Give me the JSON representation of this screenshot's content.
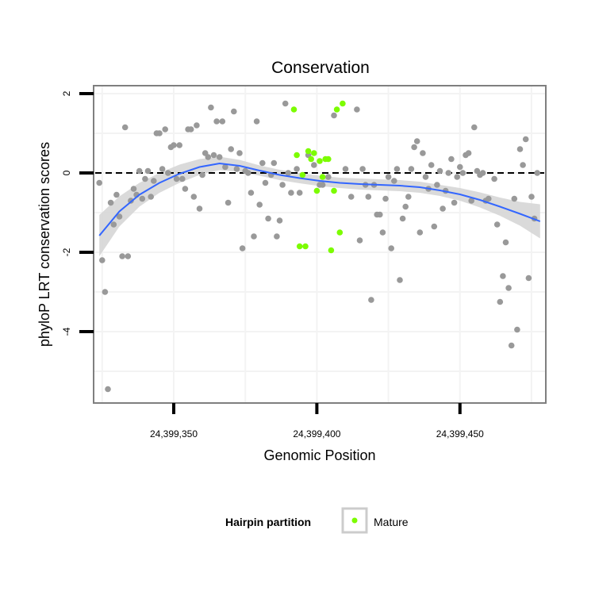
{
  "chart_data": {
    "type": "scatter",
    "title": "Conservation",
    "xlabel": "Genomic Position",
    "ylabel": "phyloP LRT conservation scores",
    "xlim": [
      24399322,
      24399480
    ],
    "ylim": [
      -5.8,
      2.2
    ],
    "x_ticks": [
      24399350,
      24399400,
      24399450
    ],
    "x_tick_labels": [
      "24,399,350",
      "24,399,400",
      "24,399,450"
    ],
    "y_ticks": [
      2,
      0,
      -2,
      -4
    ],
    "y_tick_labels": [
      "2",
      "0",
      "-2",
      "-4"
    ],
    "grid": true,
    "reference_line_y": 0,
    "legend": {
      "title": "Hairpin partition",
      "entries": [
        {
          "label": "Mature",
          "color": "#7cfc00"
        }
      ],
      "placement": "bottom"
    },
    "colors": {
      "other": "#999999",
      "mature": "#7cfc00",
      "smooth": "#3366ff",
      "band": "#d3d3d3"
    },
    "series": [
      {
        "group": "other",
        "points": [
          [
            24399324,
            -0.25
          ],
          [
            24399325,
            -2.2
          ],
          [
            24399326,
            -3.0
          ],
          [
            24399327,
            -5.45
          ],
          [
            24399328,
            -0.75
          ],
          [
            24399329,
            -1.3
          ],
          [
            24399330,
            -0.55
          ],
          [
            24399331,
            -1.1
          ],
          [
            24399332,
            -2.1
          ],
          [
            24399333,
            1.15
          ],
          [
            24399334,
            -2.1
          ],
          [
            24399335,
            -0.7
          ],
          [
            24399336,
            -0.4
          ],
          [
            24399337,
            -0.55
          ],
          [
            24399338,
            0.05
          ],
          [
            24399339,
            -0.65
          ],
          [
            24399340,
            -0.15
          ],
          [
            24399341,
            0.05
          ],
          [
            24399342,
            -0.6
          ],
          [
            24399343,
            -0.2
          ],
          [
            24399344,
            1.0
          ],
          [
            24399345,
            1.0
          ],
          [
            24399346,
            0.1
          ],
          [
            24399347,
            1.1
          ],
          [
            24399348,
            0.0
          ],
          [
            24399349,
            0.65
          ],
          [
            24399350,
            0.7
          ],
          [
            24399351,
            -0.15
          ],
          [
            24399352,
            0.7
          ],
          [
            24399353,
            -0.15
          ],
          [
            24399354,
            -0.4
          ],
          [
            24399355,
            1.1
          ],
          [
            24399356,
            1.1
          ],
          [
            24399357,
            -0.6
          ],
          [
            24399358,
            1.2
          ],
          [
            24399359,
            -0.9
          ],
          [
            24399360,
            -0.05
          ],
          [
            24399361,
            0.5
          ],
          [
            24399362,
            0.4
          ],
          [
            24399363,
            1.65
          ],
          [
            24399364,
            0.45
          ],
          [
            24399365,
            1.3
          ],
          [
            24399366,
            0.4
          ],
          [
            24399367,
            1.3
          ],
          [
            24399368,
            0.15
          ],
          [
            24399369,
            -0.75
          ],
          [
            24399370,
            0.6
          ],
          [
            24399371,
            1.55
          ],
          [
            24399372,
            0.1
          ],
          [
            24399373,
            0.5
          ],
          [
            24399374,
            -1.9
          ],
          [
            24399375,
            0.05
          ],
          [
            24399376,
            0.0
          ],
          [
            24399377,
            -0.5
          ],
          [
            24399378,
            -1.6
          ],
          [
            24399379,
            1.3
          ],
          [
            24399380,
            -0.8
          ],
          [
            24399381,
            0.25
          ],
          [
            24399382,
            -0.25
          ],
          [
            24399383,
            -1.15
          ],
          [
            24399384,
            -0.05
          ],
          [
            24399385,
            0.25
          ],
          [
            24399386,
            -1.6
          ],
          [
            24399387,
            -1.2
          ],
          [
            24399388,
            -0.3
          ],
          [
            24399389,
            1.75
          ],
          [
            24399390,
            0.0
          ],
          [
            24399391,
            -0.5
          ],
          [
            24399393,
            0.1
          ],
          [
            24399394,
            -0.5
          ],
          [
            24399397,
            0.45
          ],
          [
            24399399,
            0.2
          ],
          [
            24399401,
            -0.3
          ],
          [
            24399402,
            -0.3
          ],
          [
            24399404,
            -0.1
          ],
          [
            24399406,
            1.45
          ],
          [
            24399410,
            0.1
          ],
          [
            24399412,
            -0.6
          ],
          [
            24399414,
            1.6
          ],
          [
            24399415,
            -1.7
          ],
          [
            24399416,
            0.1
          ],
          [
            24399417,
            -0.3
          ],
          [
            24399418,
            -0.6
          ],
          [
            24399419,
            -3.2
          ],
          [
            24399420,
            -0.3
          ],
          [
            24399421,
            -1.05
          ],
          [
            24399422,
            -1.05
          ],
          [
            24399423,
            -1.5
          ],
          [
            24399424,
            -0.65
          ],
          [
            24399425,
            -0.1
          ],
          [
            24399426,
            -1.9
          ],
          [
            24399427,
            -0.2
          ],
          [
            24399428,
            0.1
          ],
          [
            24399429,
            -2.7
          ],
          [
            24399430,
            -1.15
          ],
          [
            24399431,
            -0.85
          ],
          [
            24399432,
            -0.6
          ],
          [
            24399433,
            0.1
          ],
          [
            24399434,
            0.65
          ],
          [
            24399435,
            0.8
          ],
          [
            24399436,
            -1.5
          ],
          [
            24399437,
            0.5
          ],
          [
            24399438,
            -0.1
          ],
          [
            24399439,
            -0.4
          ],
          [
            24399440,
            0.2
          ],
          [
            24399441,
            -1.35
          ],
          [
            24399442,
            -0.3
          ],
          [
            24399443,
            0.05
          ],
          [
            24399444,
            -0.9
          ],
          [
            24399445,
            -0.45
          ],
          [
            24399446,
            0.0
          ],
          [
            24399447,
            0.35
          ],
          [
            24399448,
            -0.75
          ],
          [
            24399449,
            -0.1
          ],
          [
            24399450,
            0.15
          ],
          [
            24399451,
            0.0
          ],
          [
            24399452,
            0.45
          ],
          [
            24399453,
            0.5
          ],
          [
            24399454,
            -0.7
          ],
          [
            24399455,
            1.15
          ],
          [
            24399456,
            0.05
          ],
          [
            24399457,
            -0.05
          ],
          [
            24399458,
            0.0
          ],
          [
            24399459,
            -0.7
          ],
          [
            24399460,
            -0.65
          ],
          [
            24399462,
            -0.15
          ],
          [
            24399463,
            -1.3
          ],
          [
            24399464,
            -3.25
          ],
          [
            24399465,
            -2.6
          ],
          [
            24399466,
            -1.75
          ],
          [
            24399467,
            -2.9
          ],
          [
            24399468,
            -4.35
          ],
          [
            24399469,
            -0.65
          ],
          [
            24399470,
            -3.95
          ],
          [
            24399471,
            0.6
          ],
          [
            24399472,
            0.2
          ],
          [
            24399473,
            0.85
          ],
          [
            24399474,
            -2.65
          ],
          [
            24399475,
            -0.6
          ],
          [
            24399476,
            -1.15
          ],
          [
            24399477,
            0.0
          ]
        ]
      },
      {
        "group": "mature",
        "name": "Mature",
        "points": [
          [
            24399392,
            1.6
          ],
          [
            24399393,
            0.45
          ],
          [
            24399394,
            -1.85
          ],
          [
            24399395,
            -0.05
          ],
          [
            24399396,
            -1.85
          ],
          [
            24399397,
            0.55
          ],
          [
            24399398,
            0.35
          ],
          [
            24399399,
            0.5
          ],
          [
            24399400,
            -0.45
          ],
          [
            24399401,
            0.3
          ],
          [
            24399402,
            -0.1
          ],
          [
            24399403,
            0.35
          ],
          [
            24399404,
            0.35
          ],
          [
            24399405,
            -1.95
          ],
          [
            24399406,
            -0.45
          ],
          [
            24399407,
            1.6
          ],
          [
            24399408,
            -1.5
          ],
          [
            24399409,
            1.75
          ]
        ]
      }
    ],
    "smooth": {
      "x": [
        24399324,
        24399331,
        24399338,
        24399345,
        24399352,
        24399359,
        24399366,
        24399373,
        24399380,
        24399387,
        24399394,
        24399401,
        24399408,
        24399415,
        24399422,
        24399429,
        24399436,
        24399443,
        24399450,
        24399457,
        24399464,
        24399471,
        24399478
      ],
      "y": [
        -1.58,
        -0.97,
        -0.55,
        -0.25,
        -0.02,
        0.15,
        0.24,
        0.18,
        0.06,
        -0.05,
        -0.13,
        -0.2,
        -0.25,
        -0.28,
        -0.3,
        -0.32,
        -0.36,
        -0.44,
        -0.54,
        -0.68,
        -0.85,
        -1.03,
        -1.22
      ],
      "lower": [
        -2.1,
        -1.35,
        -0.85,
        -0.5,
        -0.25,
        -0.05,
        0.07,
        0.03,
        -0.07,
        -0.18,
        -0.26,
        -0.33,
        -0.38,
        -0.42,
        -0.44,
        -0.46,
        -0.5,
        -0.58,
        -0.7,
        -0.87,
        -1.08,
        -1.33,
        -1.65
      ],
      "upper": [
        -1.06,
        -0.59,
        -0.25,
        0.0,
        0.21,
        0.35,
        0.41,
        0.33,
        0.19,
        0.08,
        0.0,
        -0.07,
        -0.12,
        -0.14,
        -0.16,
        -0.18,
        -0.22,
        -0.3,
        -0.38,
        -0.49,
        -0.62,
        -0.73,
        -0.79
      ]
    }
  }
}
